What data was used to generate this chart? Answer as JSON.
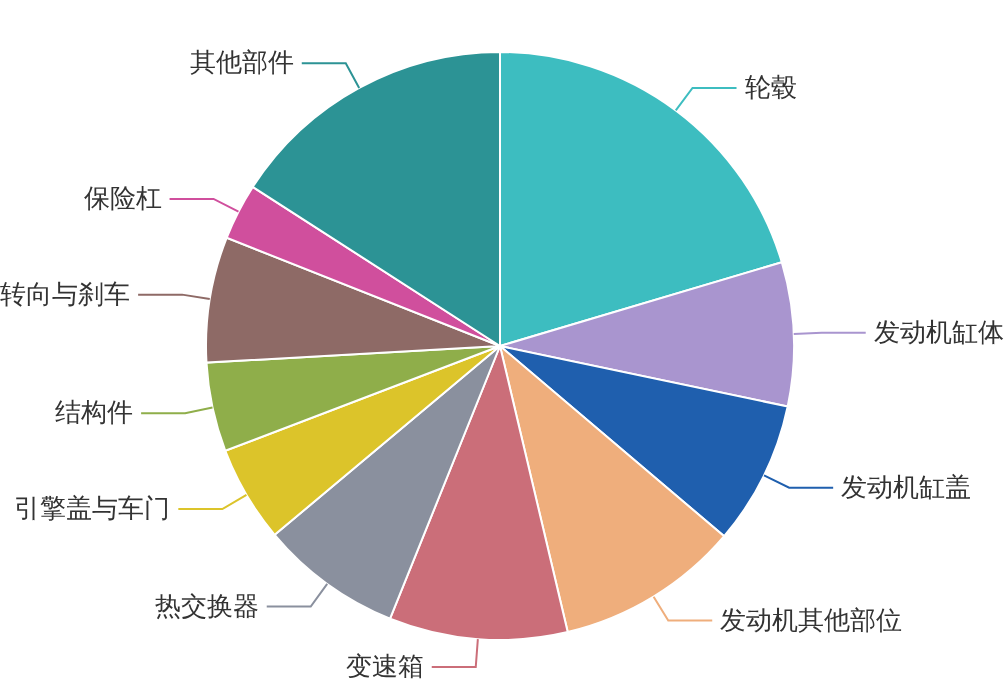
{
  "chart_data": {
    "type": "pie",
    "categories": [
      "轮毂",
      "发动机缸体",
      "发动机缸盖",
      "发动机其他部位",
      "变速箱",
      "热交换器",
      "引擎盖与车门",
      "结构件",
      "转向与刹车",
      "保险杠",
      "其他部件"
    ],
    "values": [
      20.4,
      7.9,
      7.9,
      10.1,
      9.8,
      7.8,
      5.3,
      4.9,
      6.9,
      3.1,
      15.9
    ],
    "colors": [
      "#3dbdc0",
      "#a995cf",
      "#1f5fae",
      "#efae7c",
      "#cb6e79",
      "#8a909e",
      "#dcc42a",
      "#8fae4a",
      "#8e6a66",
      "#d04f9d",
      "#2c9395"
    ],
    "legend": false
  }
}
